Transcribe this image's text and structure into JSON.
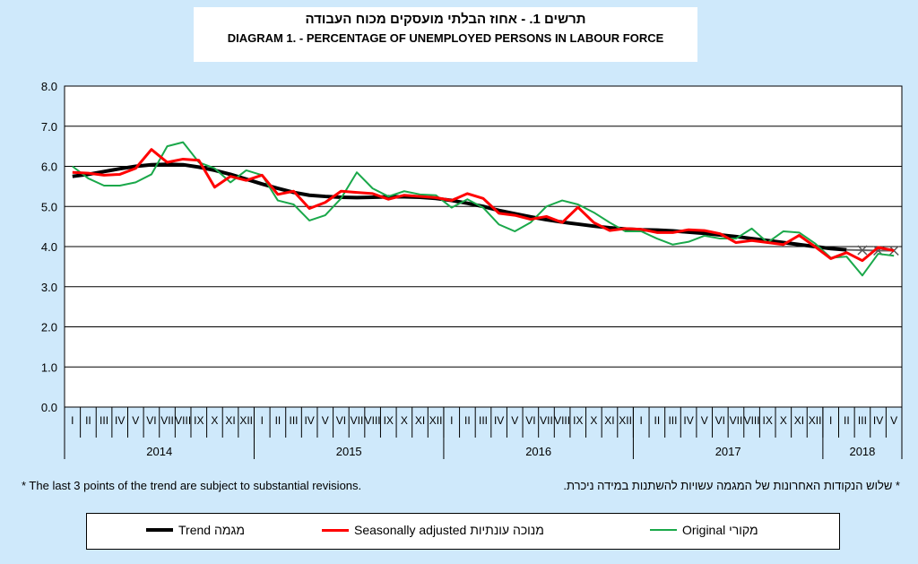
{
  "title": {
    "hebrew": "תרשים 1. - אחוז הבלתי מועסקים מכוח העבודה",
    "english": "DIAGRAM  1. - PERCENTAGE OF UNEMPLOYED PERSONS IN LABOUR FORCE"
  },
  "notes": {
    "english": "* The last 3 points of the trend are subject to substantial revisions.",
    "hebrew": "* שלוש הנקודות האחרונות של המגמה עשויות להשתנות במידה ניכרת."
  },
  "legend": {
    "trend": "Trend  מגמה",
    "seasonal": "Seasonally adjusted  מנוכה עונתיות",
    "original": "Original  מקורי"
  },
  "colors": {
    "trend": "#000000",
    "seasonal": "#ff0000",
    "original": "#1aa84a",
    "background": "#cfe9fb"
  },
  "chart_data": {
    "type": "line",
    "ylim": [
      0,
      8
    ],
    "yticks": [
      "0.0",
      "1.0",
      "2.0",
      "3.0",
      "4.0",
      "5.0",
      "6.0",
      "7.0",
      "8.0"
    ],
    "grid": true,
    "month_labels": [
      "I",
      "II",
      "III",
      "IV",
      "V",
      "VI",
      "VII",
      "VIII",
      "IX",
      "X",
      "XI",
      "XII",
      "I",
      "II",
      "III",
      "IV",
      "V",
      "VI",
      "VII",
      "VIII",
      "IX",
      "X",
      "XI",
      "XII",
      "I",
      "II",
      "III",
      "IV",
      "V",
      "VI",
      "VII",
      "VIII",
      "IX",
      "X",
      "XI",
      "XII",
      "I",
      "II",
      "III",
      "IV",
      "V",
      "VI",
      "VII",
      "VIII",
      "IX",
      "X",
      "XI",
      "XII",
      "I",
      "II",
      "III",
      "IV",
      "V"
    ],
    "years": [
      {
        "label": "2014",
        "months": 12
      },
      {
        "label": "2015",
        "months": 12
      },
      {
        "label": "2016",
        "months": 12
      },
      {
        "label": "2017",
        "months": 12
      },
      {
        "label": "2018",
        "months": 5
      }
    ],
    "series": [
      {
        "name": "Trend",
        "color": "#000000",
        "width": 4,
        "values": [
          5.75,
          5.8,
          5.87,
          5.94,
          6.0,
          6.04,
          6.05,
          6.04,
          5.98,
          5.9,
          5.8,
          5.68,
          5.56,
          5.45,
          5.35,
          5.28,
          5.25,
          5.23,
          5.22,
          5.23,
          5.24,
          5.24,
          5.23,
          5.2,
          5.15,
          5.08,
          5.0,
          4.9,
          4.82,
          4.74,
          4.67,
          4.61,
          4.56,
          4.51,
          4.47,
          4.44,
          4.42,
          4.41,
          4.39,
          4.36,
          4.33,
          4.29,
          4.25,
          4.2,
          4.15,
          4.1,
          4.05,
          4.0,
          3.95,
          3.92,
          3.91,
          3.9,
          3.9
        ],
        "projected_last": 3
      },
      {
        "name": "Seasonally adjusted",
        "color": "#ff0000",
        "width": 3,
        "values": [
          5.85,
          5.83,
          5.78,
          5.8,
          5.95,
          6.42,
          6.1,
          6.18,
          6.15,
          5.48,
          5.75,
          5.65,
          5.78,
          5.3,
          5.38,
          4.95,
          5.1,
          5.38,
          5.35,
          5.32,
          5.18,
          5.28,
          5.25,
          5.22,
          5.15,
          5.32,
          5.2,
          4.83,
          4.78,
          4.68,
          4.75,
          4.6,
          4.98,
          4.6,
          4.4,
          4.45,
          4.43,
          4.35,
          4.35,
          4.42,
          4.4,
          4.32,
          4.1,
          4.15,
          4.1,
          4.05,
          4.28,
          4.0,
          3.7,
          3.85,
          3.65,
          3.98,
          3.9
        ]
      },
      {
        "name": "Original",
        "color": "#1aa84a",
        "width": 2,
        "values": [
          6.0,
          5.7,
          5.52,
          5.52,
          5.6,
          5.8,
          6.5,
          6.6,
          6.1,
          5.95,
          5.6,
          5.9,
          5.78,
          5.15,
          5.05,
          4.65,
          4.78,
          5.2,
          5.85,
          5.45,
          5.25,
          5.38,
          5.3,
          5.28,
          4.97,
          5.18,
          4.97,
          4.55,
          4.38,
          4.6,
          5.0,
          5.15,
          5.05,
          4.85,
          4.6,
          4.38,
          4.38,
          4.2,
          4.05,
          4.12,
          4.27,
          4.2,
          4.2,
          4.45,
          4.1,
          4.38,
          4.35,
          4.08,
          3.72,
          3.75,
          3.28,
          3.82,
          3.77
        ]
      }
    ]
  }
}
